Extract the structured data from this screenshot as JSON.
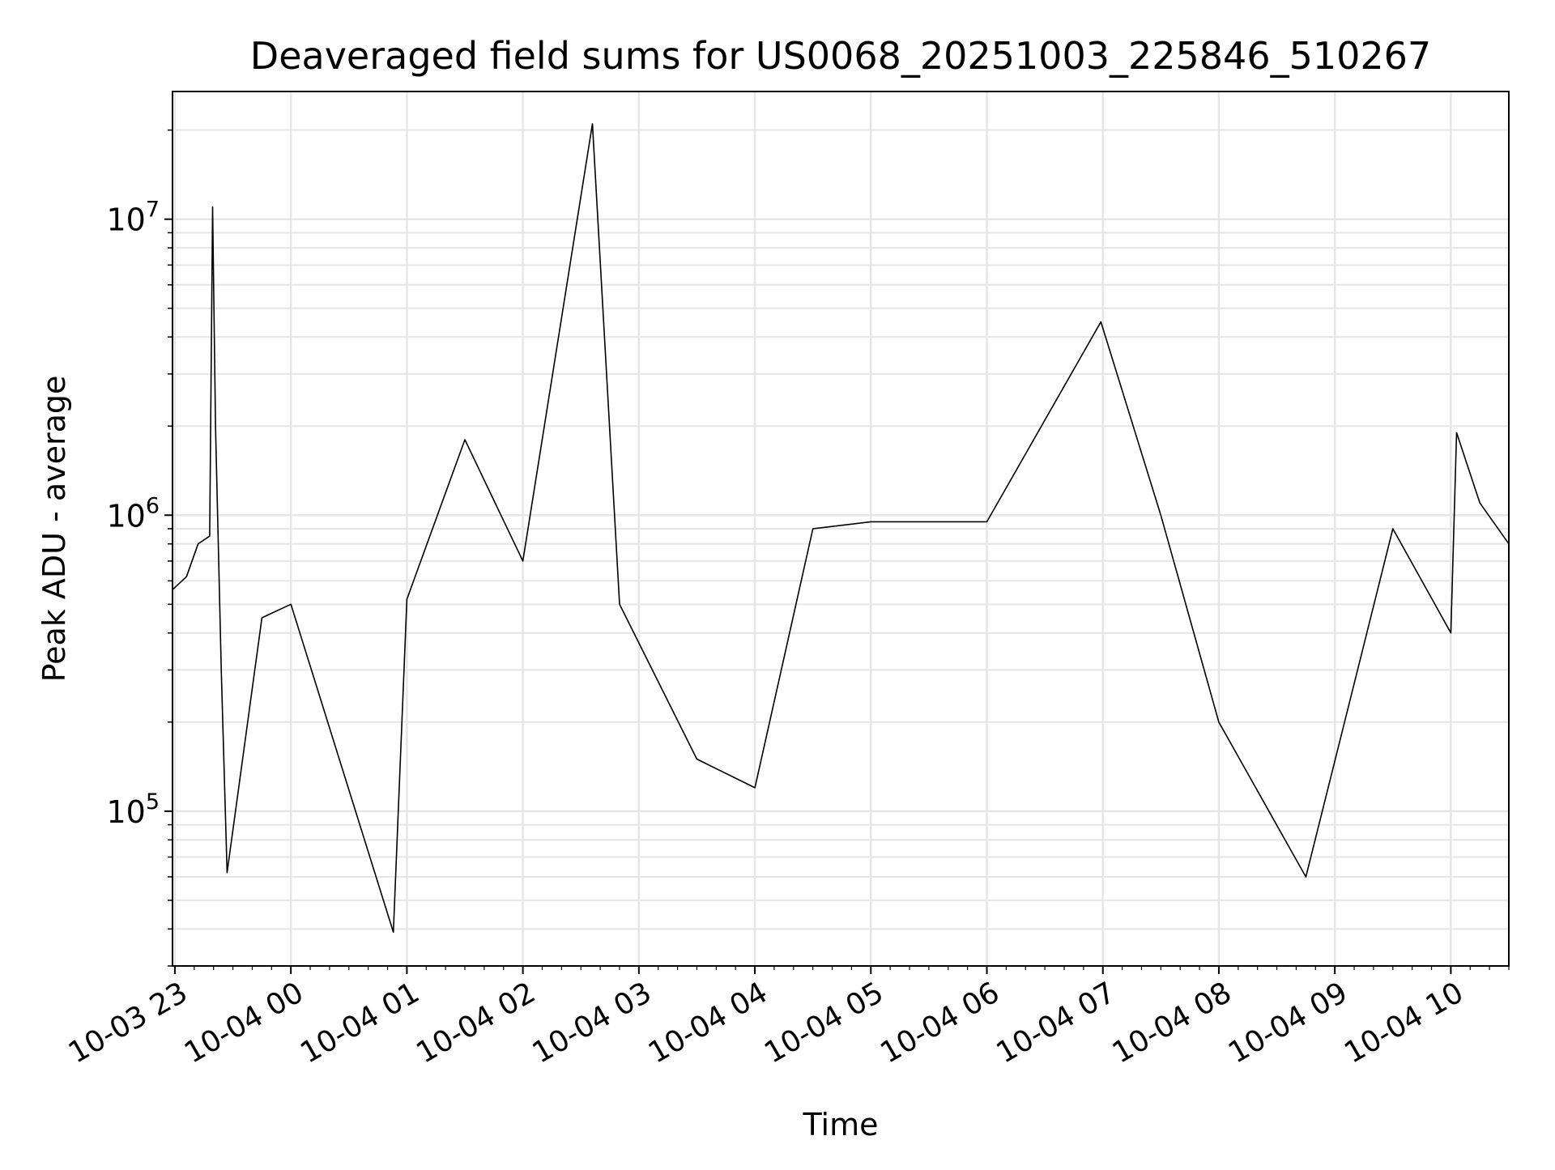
{
  "chart_data": {
    "type": "line",
    "title": "Deaveraged field sums for US0068_20251003_225846_510267",
    "xlabel": "Time",
    "ylabel": "Peak ADU - average",
    "yscale": "log",
    "ylim": [
      30000,
      27000000
    ],
    "xlim": [
      "2025-10-03T22:58:46",
      "2025-10-04T10:30:00"
    ],
    "grid": true,
    "line_color": "#000000",
    "x_ticks": [
      {
        "t": "2025-10-03T23:00:00",
        "label": "10-03 23"
      },
      {
        "t": "2025-10-04T00:00:00",
        "label": "10-04 00"
      },
      {
        "t": "2025-10-04T01:00:00",
        "label": "10-04 01"
      },
      {
        "t": "2025-10-04T02:00:00",
        "label": "10-04 02"
      },
      {
        "t": "2025-10-04T03:00:00",
        "label": "10-04 03"
      },
      {
        "t": "2025-10-04T04:00:00",
        "label": "10-04 04"
      },
      {
        "t": "2025-10-04T05:00:00",
        "label": "10-04 05"
      },
      {
        "t": "2025-10-04T06:00:00",
        "label": "10-04 06"
      },
      {
        "t": "2025-10-04T07:00:00",
        "label": "10-04 07"
      },
      {
        "t": "2025-10-04T08:00:00",
        "label": "10-04 08"
      },
      {
        "t": "2025-10-04T09:00:00",
        "label": "10-04 09"
      },
      {
        "t": "2025-10-04T10:00:00",
        "label": "10-04 10"
      }
    ],
    "y_ticks": [
      {
        "value": 100000,
        "label": "10",
        "exp": "5"
      },
      {
        "value": 1000000,
        "label": "10",
        "exp": "6"
      },
      {
        "value": 10000000,
        "label": "10",
        "exp": "7"
      }
    ],
    "series": [
      {
        "values": [
          {
            "t": "2025-10-03T22:58:46",
            "y": 560000
          },
          {
            "t": "2025-10-03T23:06:00",
            "y": 620000
          },
          {
            "t": "2025-10-03T23:12:00",
            "y": 800000
          },
          {
            "t": "2025-10-03T23:18:00",
            "y": 850000
          },
          {
            "t": "2025-10-03T23:19:30",
            "y": 11000000
          },
          {
            "t": "2025-10-03T23:21:00",
            "y": 2000000
          },
          {
            "t": "2025-10-03T23:24:00",
            "y": 300000
          },
          {
            "t": "2025-10-03T23:27:00",
            "y": 62000
          },
          {
            "t": "2025-10-03T23:45:00",
            "y": 450000
          },
          {
            "t": "2025-10-04T00:00:00",
            "y": 500000
          },
          {
            "t": "2025-10-04T00:53:00",
            "y": 39000
          },
          {
            "t": "2025-10-04T01:00:00",
            "y": 520000
          },
          {
            "t": "2025-10-04T01:30:00",
            "y": 1800000
          },
          {
            "t": "2025-10-04T02:00:00",
            "y": 700000
          },
          {
            "t": "2025-10-04T02:36:00",
            "y": 21000000
          },
          {
            "t": "2025-10-04T02:50:00",
            "y": 500000
          },
          {
            "t": "2025-10-04T03:30:00",
            "y": 150000
          },
          {
            "t": "2025-10-04T04:00:00",
            "y": 120000
          },
          {
            "t": "2025-10-04T04:30:00",
            "y": 900000
          },
          {
            "t": "2025-10-04T05:00:00",
            "y": 950000
          },
          {
            "t": "2025-10-04T06:00:00",
            "y": 950000
          },
          {
            "t": "2025-10-04T06:59:00",
            "y": 4500000
          },
          {
            "t": "2025-10-04T07:30:00",
            "y": 1000000
          },
          {
            "t": "2025-10-04T08:00:00",
            "y": 200000
          },
          {
            "t": "2025-10-04T08:45:00",
            "y": 60000
          },
          {
            "t": "2025-10-04T09:30:00",
            "y": 900000
          },
          {
            "t": "2025-10-04T10:00:00",
            "y": 400000
          },
          {
            "t": "2025-10-04T10:03:00",
            "y": 1900000
          },
          {
            "t": "2025-10-04T10:15:00",
            "y": 1100000
          },
          {
            "t": "2025-10-04T10:30:00",
            "y": 800000
          }
        ]
      }
    ]
  }
}
